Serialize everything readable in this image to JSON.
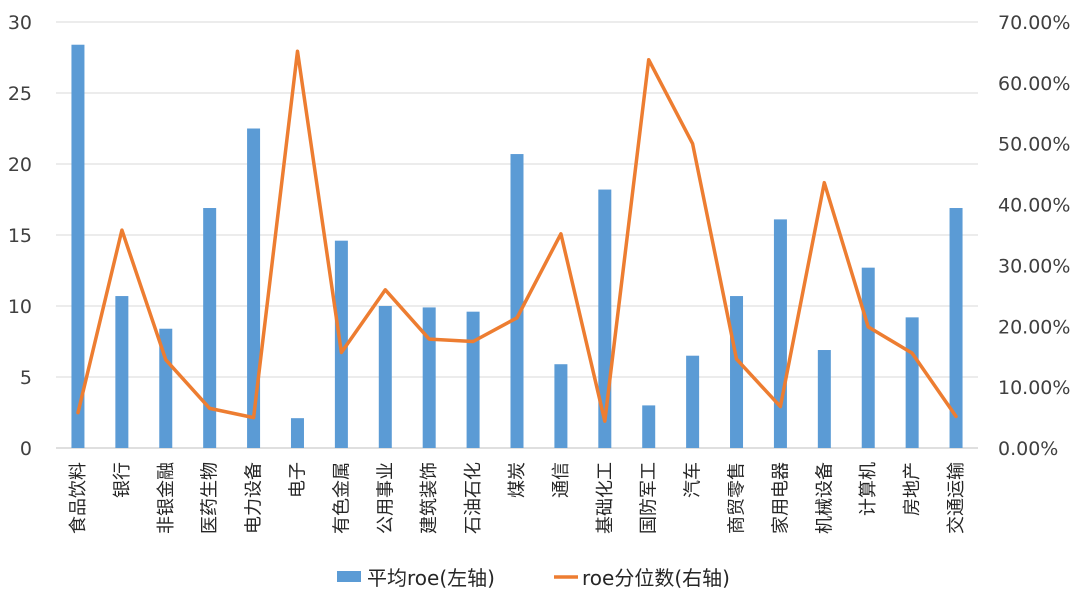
{
  "chart_data": {
    "type": "bar+line",
    "title": "",
    "categories": [
      "食品饮料",
      "银行",
      "非银金融",
      "医药生物",
      "电力设备",
      "电子",
      "有色金属",
      "公用事业",
      "建筑装饰",
      "石油石化",
      "煤炭",
      "通信",
      "基础化工",
      "国防军工",
      "汽车",
      "商贸零售",
      "家用电器",
      "机械设备",
      "计算机",
      "房地产",
      "交通运输"
    ],
    "series": [
      {
        "name": "平均roe(左轴)",
        "kind": "bar",
        "axis": "left",
        "color": "#5b9bd5",
        "values": [
          28.4,
          10.7,
          8.4,
          16.9,
          22.5,
          2.1,
          14.6,
          10.0,
          9.9,
          9.6,
          20.7,
          5.9,
          18.2,
          3.0,
          6.5,
          10.7,
          16.1,
          6.9,
          12.7,
          9.2,
          16.9
        ]
      },
      {
        "name": "roe分位数(右轴)",
        "kind": "line",
        "axis": "right",
        "color": "#ed7d31",
        "values": [
          5.8,
          35.8,
          14.5,
          6.5,
          5.0,
          65.2,
          15.7,
          26.0,
          17.9,
          17.5,
          21.4,
          35.2,
          4.4,
          63.8,
          50.0,
          14.6,
          6.8,
          43.6,
          19.9,
          15.6,
          5.2
        ]
      }
    ],
    "left_axis": {
      "ylim": [
        0,
        30
      ],
      "ticks": [
        "0",
        "5",
        "10",
        "15",
        "20",
        "25",
        "30"
      ]
    },
    "right_axis": {
      "ylim": [
        0,
        70
      ],
      "ticks": [
        "0.00%",
        "10.00%",
        "20.00%",
        "30.00%",
        "40.00%",
        "50.00%",
        "60.00%",
        "70.00%"
      ]
    },
    "grid": true,
    "legend": {
      "position": "bottom",
      "items": [
        "平均roe(左轴)",
        "roe分位数(右轴)"
      ]
    }
  }
}
